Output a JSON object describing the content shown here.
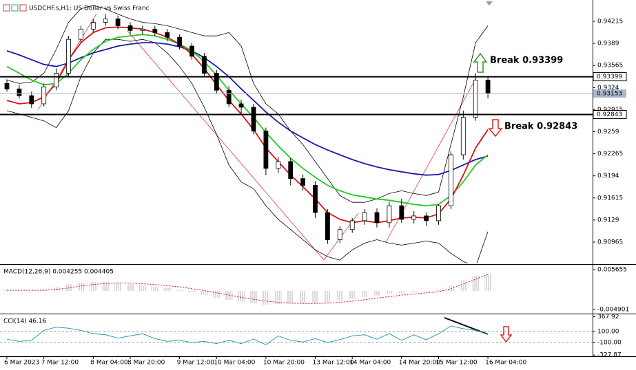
{
  "chart_data": [
    {
      "type": "candlestick",
      "title": "USDCHF.s,H1:  US Dollar vs Swiss Franc",
      "categories": [
        "6 Mar 2023",
        null,
        null,
        "7 Mar 12:00",
        null,
        null,
        null,
        "8 Mar 04:00",
        null,
        null,
        "8 Mar 20:00",
        null,
        null,
        null,
        "9 Mar 12:00",
        null,
        null,
        "10 Mar 04:00",
        null,
        null,
        null,
        "10 Mar 20:00",
        null,
        null,
        null,
        "13 Mar 12:00",
        null,
        null,
        "14 Mar 04:00",
        null,
        null,
        null,
        "14 Mar 20:00",
        null,
        null,
        "15 Mar 12:00",
        null,
        null,
        null,
        "16 Mar 04:00"
      ],
      "open": [
        0.933,
        0.9322,
        0.9312,
        0.93,
        0.9325,
        0.9345,
        0.9395,
        0.941,
        0.942,
        0.9425,
        0.9415,
        0.9408,
        0.941,
        0.9405,
        0.9398,
        0.9385,
        0.937,
        0.9345,
        0.932,
        0.93,
        0.9295,
        0.926,
        0.9205,
        0.9215,
        0.919,
        0.918,
        0.914,
        0.91,
        0.9115,
        0.9128,
        0.914,
        0.9125,
        0.915,
        0.913,
        0.9135,
        0.9128,
        0.915,
        0.9225,
        0.928,
        0.9335
      ],
      "high": [
        0.9336,
        0.9328,
        0.9318,
        0.933,
        0.9352,
        0.94,
        0.9415,
        0.9425,
        0.9432,
        0.943,
        0.942,
        0.9415,
        0.9415,
        0.941,
        0.9402,
        0.939,
        0.9375,
        0.935,
        0.9326,
        0.9306,
        0.93,
        0.9265,
        0.9222,
        0.922,
        0.9196,
        0.9186,
        0.9145,
        0.912,
        0.9132,
        0.9145,
        0.9146,
        0.9156,
        0.916,
        0.9142,
        0.914,
        0.9152,
        0.923,
        0.929,
        0.9345,
        0.934
      ],
      "low": [
        0.9318,
        0.9308,
        0.9294,
        0.9296,
        0.932,
        0.934,
        0.939,
        0.9405,
        0.9415,
        0.941,
        0.9402,
        0.9402,
        0.94,
        0.9392,
        0.938,
        0.9365,
        0.934,
        0.9315,
        0.9295,
        0.9285,
        0.9255,
        0.9195,
        0.9198,
        0.918,
        0.9172,
        0.9132,
        0.9094,
        0.9095,
        0.911,
        0.9122,
        0.9118,
        0.9118,
        0.9125,
        0.9124,
        0.912,
        0.9122,
        0.9145,
        0.9218,
        0.9275,
        0.9308
      ],
      "close": [
        0.9322,
        0.9312,
        0.93,
        0.9325,
        0.9345,
        0.9395,
        0.941,
        0.942,
        0.9425,
        0.9415,
        0.9408,
        0.941,
        0.9405,
        0.9398,
        0.9385,
        0.937,
        0.9345,
        0.932,
        0.93,
        0.9295,
        0.926,
        0.9205,
        0.9215,
        0.919,
        0.918,
        0.914,
        0.91,
        0.9115,
        0.9128,
        0.914,
        0.9125,
        0.915,
        0.913,
        0.9135,
        0.9128,
        0.915,
        0.9225,
        0.928,
        0.9335,
        0.9315
      ],
      "series": [
        {
          "color": "#000000",
          "values": [
            0.9335,
            0.933,
            0.9332,
            0.9345,
            0.938,
            0.942,
            0.944,
            0.9445,
            0.944,
            0.9432,
            0.9425,
            0.942,
            0.9418,
            0.9415,
            0.941,
            0.9405,
            0.94,
            0.94,
            0.9405,
            0.9385,
            0.933,
            0.93,
            0.9285,
            0.926,
            0.924,
            0.9215,
            0.919,
            0.9165,
            0.9155,
            0.9155,
            0.916,
            0.9168,
            0.9172,
            0.9168,
            0.9165,
            0.917,
            0.924,
            0.931,
            0.939,
            0.9415
          ]
        },
        {
          "color": "#000000",
          "values": [
            0.929,
            0.9285,
            0.928,
            0.9275,
            0.9265,
            0.929,
            0.934,
            0.9375,
            0.9395,
            0.9395,
            0.9392,
            0.9395,
            0.939,
            0.9375,
            0.9355,
            0.933,
            0.9295,
            0.9255,
            0.921,
            0.9185,
            0.9175,
            0.915,
            0.913,
            0.9115,
            0.91,
            0.9085,
            0.9075,
            0.907,
            0.9085,
            0.9095,
            0.91,
            0.9095,
            0.9092,
            0.9095,
            0.9098,
            0.9095,
            0.908,
            0.9068,
            0.906,
            0.9112
          ]
        },
        {
          "color": "#1a1aa8",
          "values": [
            0.9378,
            0.9372,
            0.9365,
            0.9358,
            0.9355,
            0.936,
            0.9368,
            0.9375,
            0.938,
            0.9385,
            0.9388,
            0.939,
            0.939,
            0.9388,
            0.9384,
            0.9378,
            0.9368,
            0.9355,
            0.934,
            0.9322,
            0.9305,
            0.9288,
            0.9273,
            0.926,
            0.925,
            0.924,
            0.9232,
            0.9225,
            0.9218,
            0.9212,
            0.9207,
            0.9203,
            0.92,
            0.9197,
            0.9195,
            0.9196,
            0.9202,
            0.921,
            0.9218,
            0.9223
          ]
        },
        {
          "color": "#22cc22",
          "values": [
            0.9355,
            0.9345,
            0.9335,
            0.9328,
            0.933,
            0.9345,
            0.9365,
            0.938,
            0.9392,
            0.9398,
            0.94,
            0.9402,
            0.94,
            0.9395,
            0.9388,
            0.9378,
            0.9362,
            0.9342,
            0.932,
            0.93,
            0.928,
            0.9258,
            0.9238,
            0.922,
            0.9205,
            0.9192,
            0.918,
            0.9172,
            0.9166,
            0.9163,
            0.916,
            0.9158,
            0.9155,
            0.9152,
            0.915,
            0.9152,
            0.9165,
            0.9185,
            0.921,
            0.9225
          ]
        },
        {
          "color": "#dd1111",
          "values": [
            0.9305,
            0.93,
            0.9302,
            0.931,
            0.933,
            0.9365,
            0.939,
            0.9405,
            0.9412,
            0.9413,
            0.9412,
            0.941,
            0.9405,
            0.9398,
            0.9388,
            0.9373,
            0.9352,
            0.9328,
            0.9305,
            0.9285,
            0.9262,
            0.9235,
            0.9215,
            0.9195,
            0.9178,
            0.916,
            0.914,
            0.913,
            0.9125,
            0.9128,
            0.9125,
            0.9128,
            0.9132,
            0.9133,
            0.9132,
            0.9138,
            0.916,
            0.9195,
            0.9235,
            0.9262
          ]
        }
      ],
      "ylim": [
        0.90651,
        0.94478
      ],
      "yticks": [
        0.94215,
        0.9389,
        0.93565,
        0.9324,
        0.92915,
        0.9259,
        0.92265,
        0.9194,
        0.91615,
        0.9129,
        0.90965
      ],
      "levels": [
        0.93399,
        0.92843
      ],
      "level_color": "#000000",
      "current": 0.93153,
      "current_color": "#a9b8cc",
      "annotations": [
        "Break 0.93399",
        "Break 0.92843"
      ]
    },
    {
      "type": "macd",
      "title": "MACD(12,26,9) 0.004255 0.004405",
      "values": [
        0.0003,
        0.0002,
        0.0001,
        0.0004,
        0.001,
        0.0018,
        0.0022,
        0.0024,
        0.0024,
        0.0021,
        0.0018,
        0.0015,
        0.0012,
        0.0008,
        0.0003,
        -0.0003,
        -0.001,
        -0.0018,
        -0.0024,
        -0.0028,
        -0.0032,
        -0.0036,
        -0.0035,
        -0.0034,
        -0.0033,
        -0.0032,
        -0.003,
        -0.0026,
        -0.0021,
        -0.0016,
        -0.0012,
        -0.0008,
        -0.0005,
        -0.0003,
        -0.0002,
        0.0002,
        0.0014,
        0.0028,
        0.004,
        0.0043
      ],
      "signal": [
        0.0002,
        0.0002,
        0.0002,
        0.0002,
        0.0004,
        0.0008,
        0.0013,
        0.0017,
        0.002,
        0.0021,
        0.0021,
        0.0019,
        0.0017,
        0.0014,
        0.0011,
        0.0006,
        0.0001,
        -0.0005,
        -0.0011,
        -0.0017,
        -0.0022,
        -0.0027,
        -0.003,
        -0.0032,
        -0.0033,
        -0.0033,
        -0.0032,
        -0.003,
        -0.0027,
        -0.0023,
        -0.0019,
        -0.0015,
        -0.0011,
        -0.0008,
        -0.0005,
        -0.0002,
        0.0006,
        0.0018,
        0.0031,
        0.0044
      ],
      "color": "#b4b4b4",
      "signal_color": "#dd1111",
      "ylim": [
        -0.005811,
        0.006747
      ],
      "yticks": [
        0.005655,
        -0.004901
      ]
    },
    {
      "type": "cci",
      "title": "CCI(14) 46.16",
      "values": [
        -40,
        -80,
        -60,
        120,
        180,
        160,
        120,
        60,
        40,
        -20,
        20,
        60,
        -30,
        -80,
        -60,
        -100,
        -80,
        -120,
        -60,
        -120,
        -40,
        -140,
        20,
        -60,
        -90,
        -30,
        -100,
        -50,
        20,
        40,
        -40,
        60,
        -60,
        40,
        -50,
        60,
        200,
        150,
        120,
        46.16
      ],
      "color": "#2aa0b5",
      "ylim": [
        -337.5,
        400
      ],
      "yticks": [
        367.92,
        {
          "value": 100,
          "label": "100.00"
        },
        {
          "value": -100,
          "label": "-100.00"
        },
        -327.87
      ]
    }
  ]
}
